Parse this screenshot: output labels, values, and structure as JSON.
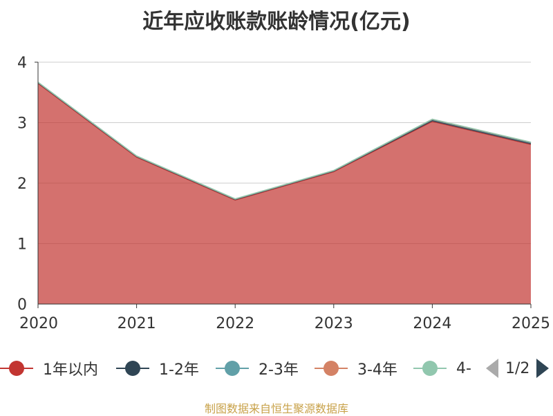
{
  "chart_data": {
    "type": "area",
    "title": "近年应收账款账龄情况(亿元)",
    "x": [
      "2020",
      "2021",
      "2022",
      "2023",
      "2024",
      "2025"
    ],
    "ylim": [
      0,
      4
    ],
    "yticks": [
      "0",
      "1",
      "2",
      "3",
      "4"
    ],
    "ylabel": "",
    "grid": true,
    "legend_placement": "bottom",
    "stacked": true,
    "series": [
      {
        "name": "1年以内",
        "color": "#c23531",
        "values": [
          3.65,
          2.43,
          1.72,
          2.19,
          3.02,
          2.64
        ]
      },
      {
        "name": "1-2年",
        "color": "#2f4554",
        "values": [
          0.01,
          0.01,
          0.01,
          0.01,
          0.02,
          0.02
        ]
      },
      {
        "name": "2-3年",
        "color": "#61a0a8",
        "values": [
          0.005,
          0.005,
          0.005,
          0.005,
          0.01,
          0.01
        ]
      },
      {
        "name": "3-4年",
        "color": "#d48265",
        "values": [
          0.003,
          0.003,
          0.003,
          0.003,
          0.005,
          0.005
        ]
      },
      {
        "name": "4-",
        "color": "#91c7ae",
        "values": [
          0.002,
          0.002,
          0.002,
          0.002,
          0.003,
          0.003
        ]
      }
    ]
  },
  "legend": {
    "page": "1/2"
  },
  "source": "制图数据来自恒生聚源数据库"
}
